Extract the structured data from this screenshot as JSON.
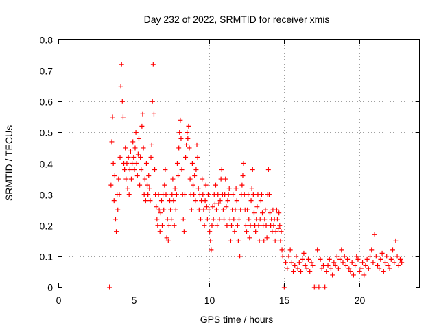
{
  "chart_data": {
    "type": "scatter",
    "title": "Day 232 of 2022, SRMTID for receiver xmis",
    "xlabel": "GPS time / hours",
    "ylabel": "SRMTID / TECUs",
    "xlim": [
      0,
      24
    ],
    "ylim": [
      0,
      0.8
    ],
    "x_ticks": [
      0,
      5,
      10,
      15,
      20
    ],
    "x_tick_labels": [
      "0",
      "5",
      "10",
      "15",
      "20"
    ],
    "y_ticks": [
      0,
      0.1,
      0.2,
      0.3,
      0.4,
      0.5,
      0.6,
      0.7,
      0.8
    ],
    "y_tick_labels": [
      "0",
      "0.1",
      "0.2",
      "0.3",
      "0.4",
      "0.5",
      "0.6",
      "0.7",
      "0.8"
    ],
    "grid": true,
    "marker": "+",
    "color": "#ff0000",
    "series": [
      {
        "name": "SRMTID",
        "points": [
          [
            3.4,
            0.0
          ],
          [
            3.5,
            0.33
          ],
          [
            3.55,
            0.47
          ],
          [
            3.6,
            0.55
          ],
          [
            3.65,
            0.4
          ],
          [
            3.7,
            0.28
          ],
          [
            3.75,
            0.36
          ],
          [
            3.8,
            0.22
          ],
          [
            3.85,
            0.18
          ],
          [
            3.9,
            0.3
          ],
          [
            3.95,
            0.25
          ],
          [
            4.0,
            0.35
          ],
          [
            4.05,
            0.3
          ],
          [
            4.1,
            0.42
          ],
          [
            4.15,
            0.65
          ],
          [
            4.2,
            0.72
          ],
          [
            4.25,
            0.6
          ],
          [
            4.3,
            0.55
          ],
          [
            4.35,
            0.4
          ],
          [
            4.4,
            0.38
          ],
          [
            4.45,
            0.45
          ],
          [
            4.5,
            0.35
          ],
          [
            4.55,
            0.4
          ],
          [
            4.6,
            0.32
          ],
          [
            4.65,
            0.42
          ],
          [
            4.7,
            0.3
          ],
          [
            4.75,
            0.38
          ],
          [
            4.8,
            0.44
          ],
          [
            4.85,
            0.35
          ],
          [
            4.9,
            0.4
          ],
          [
            4.95,
            0.47
          ],
          [
            5.0,
            0.42
          ],
          [
            5.05,
            0.38
          ],
          [
            5.1,
            0.45
          ],
          [
            5.15,
            0.5
          ],
          [
            5.2,
            0.4
          ],
          [
            5.25,
            0.36
          ],
          [
            5.3,
            0.43
          ],
          [
            5.35,
            0.48
          ],
          [
            5.4,
            0.33
          ],
          [
            5.45,
            0.42
          ],
          [
            5.5,
            0.38
          ],
          [
            5.55,
            0.52
          ],
          [
            5.6,
            0.56
          ],
          [
            5.65,
            0.45
          ],
          [
            5.7,
            0.3
          ],
          [
            5.75,
            0.35
          ],
          [
            5.8,
            0.28
          ],
          [
            5.85,
            0.4
          ],
          [
            5.9,
            0.33
          ],
          [
            5.95,
            0.3
          ],
          [
            6.0,
            0.36
          ],
          [
            6.05,
            0.32
          ],
          [
            6.1,
            0.28
          ],
          [
            6.15,
            0.42
          ],
          [
            6.2,
            0.46
          ],
          [
            6.25,
            0.6
          ],
          [
            6.3,
            0.72
          ],
          [
            6.35,
            0.56
          ],
          [
            6.4,
            0.38
          ],
          [
            6.45,
            0.3
          ],
          [
            6.5,
            0.26
          ],
          [
            6.55,
            0.22
          ],
          [
            6.6,
            0.2
          ],
          [
            6.65,
            0.3
          ],
          [
            6.7,
            0.25
          ],
          [
            6.75,
            0.18
          ],
          [
            6.8,
            0.24
          ],
          [
            6.85,
            0.28
          ],
          [
            6.9,
            0.2
          ],
          [
            6.95,
            0.3
          ],
          [
            7.0,
            0.25
          ],
          [
            7.05,
            0.33
          ],
          [
            7.1,
            0.38
          ],
          [
            7.15,
            0.3
          ],
          [
            7.2,
            0.16
          ],
          [
            7.25,
            0.22
          ],
          [
            7.3,
            0.15
          ],
          [
            7.35,
            0.2
          ],
          [
            7.4,
            0.28
          ],
          [
            7.45,
            0.25
          ],
          [
            7.5,
            0.22
          ],
          [
            7.55,
            0.3
          ],
          [
            7.6,
            0.35
          ],
          [
            7.65,
            0.28
          ],
          [
            7.7,
            0.2
          ],
          [
            7.75,
            0.32
          ],
          [
            7.8,
            0.25
          ],
          [
            7.85,
            0.3
          ],
          [
            7.9,
            0.4
          ],
          [
            7.95,
            0.36
          ],
          [
            8.0,
            0.45
          ],
          [
            8.05,
            0.5
          ],
          [
            8.1,
            0.54
          ],
          [
            8.15,
            0.48
          ],
          [
            8.2,
            0.38
          ],
          [
            8.25,
            0.3
          ],
          [
            8.3,
            0.22
          ],
          [
            8.35,
            0.18
          ],
          [
            8.4,
            0.3
          ],
          [
            8.45,
            0.42
          ],
          [
            8.5,
            0.46
          ],
          [
            8.55,
            0.5
          ],
          [
            8.6,
            0.48
          ],
          [
            8.65,
            0.52
          ],
          [
            8.7,
            0.45
          ],
          [
            8.75,
            0.35
          ],
          [
            8.8,
            0.3
          ],
          [
            8.85,
            0.25
          ],
          [
            8.9,
            0.4
          ],
          [
            8.95,
            0.33
          ],
          [
            9.0,
            0.3
          ],
          [
            9.05,
            0.36
          ],
          [
            9.1,
            0.28
          ],
          [
            9.15,
            0.38
          ],
          [
            9.2,
            0.46
          ],
          [
            9.25,
            0.42
          ],
          [
            9.3,
            0.32
          ],
          [
            9.35,
            0.25
          ],
          [
            9.4,
            0.3
          ],
          [
            9.45,
            0.22
          ],
          [
            9.5,
            0.28
          ],
          [
            9.55,
            0.35
          ],
          [
            9.6,
            0.3
          ],
          [
            9.65,
            0.25
          ],
          [
            9.7,
            0.2
          ],
          [
            9.75,
            0.28
          ],
          [
            9.8,
            0.33
          ],
          [
            9.85,
            0.26
          ],
          [
            9.9,
            0.22
          ],
          [
            9.95,
            0.3
          ],
          [
            10.0,
            0.25
          ],
          [
            10.05,
            0.18
          ],
          [
            10.1,
            0.15
          ],
          [
            10.15,
            0.12
          ],
          [
            10.2,
            0.2
          ],
          [
            10.25,
            0.26
          ],
          [
            10.3,
            0.22
          ],
          [
            10.35,
            0.3
          ],
          [
            10.4,
            0.27
          ],
          [
            10.45,
            0.33
          ],
          [
            10.5,
            0.25
          ],
          [
            10.55,
            0.2
          ],
          [
            10.6,
            0.3
          ],
          [
            10.65,
            0.27
          ],
          [
            10.7,
            0.22
          ],
          [
            10.75,
            0.28
          ],
          [
            10.8,
            0.35
          ],
          [
            10.85,
            0.38
          ],
          [
            10.9,
            0.3
          ],
          [
            10.95,
            0.25
          ],
          [
            11.0,
            0.22
          ],
          [
            11.05,
            0.3
          ],
          [
            11.1,
            0.35
          ],
          [
            11.15,
            0.26
          ],
          [
            11.2,
            0.2
          ],
          [
            11.25,
            0.28
          ],
          [
            11.3,
            0.3
          ],
          [
            11.35,
            0.32
          ],
          [
            11.4,
            0.22
          ],
          [
            11.45,
            0.15
          ],
          [
            11.5,
            0.2
          ],
          [
            11.55,
            0.25
          ],
          [
            11.6,
            0.3
          ],
          [
            11.65,
            0.22
          ],
          [
            11.7,
            0.18
          ],
          [
            11.75,
            0.25
          ],
          [
            11.8,
            0.32
          ],
          [
            11.85,
            0.28
          ],
          [
            11.9,
            0.2
          ],
          [
            11.95,
            0.15
          ],
          [
            12.0,
            0.22
          ],
          [
            12.05,
            0.1
          ],
          [
            12.1,
            0.25
          ],
          [
            12.15,
            0.3
          ],
          [
            12.2,
            0.33
          ],
          [
            12.25,
            0.36
          ],
          [
            12.3,
            0.4
          ],
          [
            12.35,
            0.3
          ],
          [
            12.4,
            0.25
          ],
          [
            12.45,
            0.2
          ],
          [
            12.5,
            0.18
          ],
          [
            12.55,
            0.25
          ],
          [
            12.6,
            0.3
          ],
          [
            12.65,
            0.22
          ],
          [
            12.7,
            0.16
          ],
          [
            12.75,
            0.2
          ],
          [
            12.8,
            0.28
          ],
          [
            12.85,
            0.32
          ],
          [
            12.9,
            0.38
          ],
          [
            12.95,
            0.3
          ],
          [
            13.0,
            0.24
          ],
          [
            13.05,
            0.2
          ],
          [
            13.1,
            0.18
          ],
          [
            13.15,
            0.22
          ],
          [
            13.2,
            0.26
          ],
          [
            13.25,
            0.3
          ],
          [
            13.3,
            0.2
          ],
          [
            13.35,
            0.15
          ],
          [
            13.4,
            0.22
          ],
          [
            13.45,
            0.28
          ],
          [
            13.5,
            0.3
          ],
          [
            13.55,
            0.24
          ],
          [
            13.6,
            0.2
          ],
          [
            13.65,
            0.15
          ],
          [
            13.7,
            0.22
          ],
          [
            13.75,
            0.25
          ],
          [
            13.8,
            0.2
          ],
          [
            13.85,
            0.16
          ],
          [
            13.9,
            0.3
          ],
          [
            13.95,
            0.38
          ],
          [
            14.0,
            0.3
          ],
          [
            14.05,
            0.24
          ],
          [
            14.1,
            0.2
          ],
          [
            14.15,
            0.22
          ],
          [
            14.2,
            0.18
          ],
          [
            14.25,
            0.25
          ],
          [
            14.3,
            0.2
          ],
          [
            14.35,
            0.22
          ],
          [
            14.4,
            0.15
          ],
          [
            14.45,
            0.18
          ],
          [
            14.5,
            0.25
          ],
          [
            14.55,
            0.22
          ],
          [
            14.6,
            0.19
          ],
          [
            14.65,
            0.24
          ],
          [
            14.7,
            0.2
          ],
          [
            14.75,
            0.15
          ],
          [
            14.8,
            0.18
          ],
          [
            14.85,
            0.12
          ],
          [
            14.9,
            0.1
          ],
          [
            15.0,
            0.0
          ],
          [
            15.1,
            0.08
          ],
          [
            15.2,
            0.06
          ],
          [
            15.3,
            0.1
          ],
          [
            15.4,
            0.12
          ],
          [
            15.5,
            0.08
          ],
          [
            15.6,
            0.05
          ],
          [
            15.7,
            0.07
          ],
          [
            15.8,
            0.1
          ],
          [
            15.9,
            0.06
          ],
          [
            16.0,
            0.08
          ],
          [
            16.1,
            0.05
          ],
          [
            16.2,
            0.09
          ],
          [
            16.3,
            0.11
          ],
          [
            16.4,
            0.07
          ],
          [
            16.5,
            0.06
          ],
          [
            16.6,
            0.09
          ],
          [
            16.7,
            0.05
          ],
          [
            16.8,
            0.08
          ],
          [
            16.9,
            0.07
          ],
          [
            17.0,
            0.0
          ],
          [
            17.1,
            0.0
          ],
          [
            17.2,
            0.12
          ],
          [
            17.3,
            0.0
          ],
          [
            17.4,
            0.09
          ],
          [
            17.5,
            0.06
          ],
          [
            17.6,
            0.07
          ],
          [
            17.7,
            0.0
          ],
          [
            17.8,
            0.05
          ],
          [
            17.9,
            0.07
          ],
          [
            18.0,
            0.09
          ],
          [
            18.1,
            0.06
          ],
          [
            18.2,
            0.04
          ],
          [
            18.3,
            0.08
          ],
          [
            18.4,
            0.07
          ],
          [
            18.5,
            0.1
          ],
          [
            18.6,
            0.06
          ],
          [
            18.7,
            0.09
          ],
          [
            18.8,
            0.12
          ],
          [
            18.9,
            0.08
          ],
          [
            19.0,
            0.1
          ],
          [
            19.1,
            0.07
          ],
          [
            19.2,
            0.09
          ],
          [
            19.3,
            0.06
          ],
          [
            19.4,
            0.05
          ],
          [
            19.5,
            0.08
          ],
          [
            19.6,
            0.04
          ],
          [
            19.7,
            0.07
          ],
          [
            19.8,
            0.1
          ],
          [
            19.9,
            0.09
          ],
          [
            20.0,
            0.05
          ],
          [
            20.1,
            0.06
          ],
          [
            20.2,
            0.08
          ],
          [
            20.3,
            0.04
          ],
          [
            20.4,
            0.07
          ],
          [
            20.5,
            0.09
          ],
          [
            20.6,
            0.06
          ],
          [
            20.7,
            0.1
          ],
          [
            20.8,
            0.12
          ],
          [
            20.9,
            0.08
          ],
          [
            21.0,
            0.17
          ],
          [
            21.1,
            0.1
          ],
          [
            21.2,
            0.07
          ],
          [
            21.3,
            0.06
          ],
          [
            21.4,
            0.09
          ],
          [
            21.5,
            0.11
          ],
          [
            21.6,
            0.05
          ],
          [
            21.7,
            0.08
          ],
          [
            21.8,
            0.1
          ],
          [
            21.9,
            0.07
          ],
          [
            22.0,
            0.06
          ],
          [
            22.1,
            0.09
          ],
          [
            22.2,
            0.12
          ],
          [
            22.3,
            0.08
          ],
          [
            22.4,
            0.15
          ],
          [
            22.5,
            0.1
          ],
          [
            22.6,
            0.07
          ],
          [
            22.7,
            0.09
          ],
          [
            22.8,
            0.08
          ]
        ]
      }
    ]
  }
}
